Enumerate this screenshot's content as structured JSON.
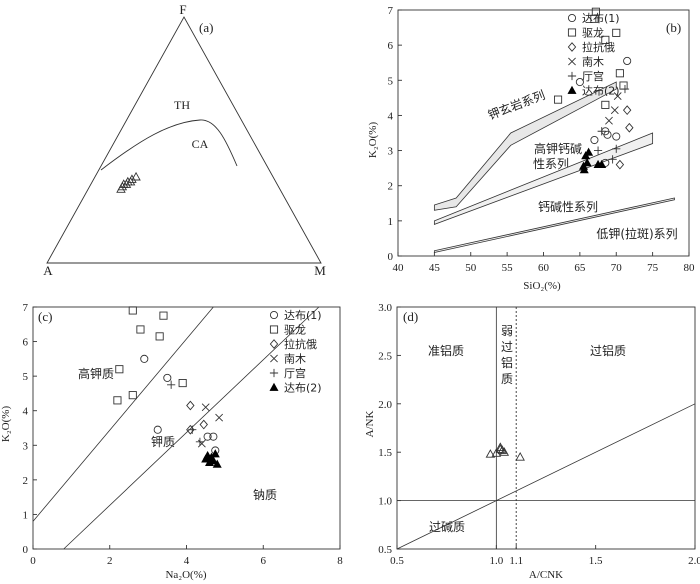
{
  "chart_data": [
    {
      "panel": "(a)",
      "type": "ternary",
      "vertices": {
        "top": "F",
        "left": "A",
        "right": "M"
      },
      "fields": [
        {
          "label": "TH"
        },
        {
          "label": "CA"
        }
      ],
      "samples": [
        {
          "F": 0.3,
          "A": 0.58,
          "M": 0.12
        },
        {
          "F": 0.31,
          "A": 0.57,
          "M": 0.12
        },
        {
          "F": 0.32,
          "A": 0.55,
          "M": 0.13
        },
        {
          "F": 0.32,
          "A": 0.56,
          "M": 0.12
        },
        {
          "F": 0.33,
          "A": 0.54,
          "M": 0.13
        },
        {
          "F": 0.33,
          "A": 0.53,
          "M": 0.14
        },
        {
          "F": 0.34,
          "A": 0.52,
          "M": 0.14
        },
        {
          "F": 0.35,
          "A": 0.5,
          "M": 0.15
        }
      ]
    },
    {
      "panel": "(b)",
      "type": "scatter",
      "xlabel": "SiO₂(%)",
      "ylabel": "K₂O(%)",
      "xlim": [
        40,
        80
      ],
      "ylim": [
        0,
        7
      ],
      "xticks": [
        40,
        45,
        50,
        55,
        60,
        65,
        70,
        75,
        80
      ],
      "yticks": [
        0,
        1,
        2,
        3,
        4,
        5,
        6,
        7
      ],
      "field_labels": [
        "钾玄岩系列",
        "高钾钙碱",
        "性系列",
        "钙碱性系列",
        "低钾(拉斑)系列"
      ],
      "legend": [
        "达布(1)",
        "驱龙",
        "拉抗俄",
        "南木",
        "厅宫",
        "达布(2)"
      ],
      "series": [
        {
          "name": "达布(1)",
          "marker": "circle",
          "points": [
            [
              65.0,
              4.95
            ],
            [
              67.0,
              3.3
            ],
            [
              68.5,
              3.55
            ],
            [
              68.8,
              3.45
            ],
            [
              68.5,
              2.65
            ],
            [
              70.0,
              3.4
            ],
            [
              71.5,
              5.55
            ]
          ]
        },
        {
          "name": "驱龙",
          "marker": "square",
          "points": [
            [
              62.0,
              4.45
            ],
            [
              67.0,
              6.75
            ],
            [
              68.5,
              6.15
            ],
            [
              68.5,
              4.3
            ],
            [
              70.0,
              6.35
            ],
            [
              70.5,
              5.2
            ],
            [
              71.0,
              4.85
            ],
            [
              67.2,
              6.95
            ]
          ]
        },
        {
          "name": "拉抗俄",
          "marker": "diamond",
          "points": [
            [
              71.5,
              4.15
            ],
            [
              71.8,
              3.65
            ],
            [
              70.5,
              2.6
            ]
          ]
        },
        {
          "name": "南木",
          "marker": "x",
          "points": [
            [
              69.0,
              3.85
            ],
            [
              69.8,
              4.15
            ],
            [
              70.2,
              4.55
            ]
          ]
        },
        {
          "name": "厅宫",
          "marker": "plus",
          "points": [
            [
              67.5,
              3.0
            ],
            [
              68.0,
              3.55
            ],
            [
              70.0,
              3.05
            ],
            [
              71.2,
              4.75
            ],
            [
              69.5,
              2.75
            ]
          ]
        },
        {
          "name": "达布(2)",
          "marker": "triangle",
          "points": [
            [
              65.5,
              2.55
            ],
            [
              65.8,
              2.85
            ],
            [
              66.0,
              2.65
            ],
            [
              65.6,
              2.45
            ],
            [
              66.2,
              2.95
            ],
            [
              67.5,
              2.6
            ],
            [
              68.0,
              2.6
            ]
          ]
        }
      ],
      "boundaries": {
        "shoshonite_upper": [
          [
            45.0,
            1.45
          ],
          [
            48.0,
            1.65
          ],
          [
            55.5,
            3.5
          ],
          [
            70.0,
            4.95
          ]
        ],
        "shoshonite_lower": [
          [
            45.0,
            1.3
          ],
          [
            48.0,
            1.4
          ],
          [
            55.5,
            3.15
          ],
          [
            70.0,
            4.75
          ]
        ],
        "highK_upper": [
          [
            45.0,
            1.0
          ],
          [
            75.0,
            3.5
          ]
        ],
        "highK_lower": [
          [
            45.0,
            0.9
          ],
          [
            75.0,
            3.2
          ]
        ],
        "calc_alk_upper": [
          [
            45.0,
            0.15
          ],
          [
            78.0,
            1.65
          ]
        ],
        "calc_alk_lower": [
          [
            45.0,
            0.1
          ],
          [
            78.0,
            1.6
          ]
        ]
      }
    },
    {
      "panel": "(c)",
      "type": "scatter",
      "xlabel": "Na₂O(%)",
      "ylabel": "K₂O(%)",
      "xlim": [
        0,
        8
      ],
      "ylim": [
        0,
        7
      ],
      "xticks": [
        0,
        2,
        4,
        6,
        8
      ],
      "yticks": [
        0,
        1,
        2,
        3,
        4,
        5,
        6,
        7
      ],
      "field_labels": [
        "高钾质",
        "钾质",
        "钠质"
      ],
      "legend": [
        "达布(1)",
        "驱龙",
        "拉抗俄",
        "南木",
        "厅宫",
        "达布(2)"
      ],
      "series": [
        {
          "name": "达布(1)",
          "marker": "circle",
          "points": [
            [
              2.9,
              5.5
            ],
            [
              3.5,
              4.95
            ],
            [
              3.25,
              3.45
            ],
            [
              4.55,
              3.25
            ],
            [
              4.7,
              3.25
            ],
            [
              4.75,
              2.85
            ]
          ]
        },
        {
          "name": "驱龙",
          "marker": "square",
          "points": [
            [
              2.25,
              5.2
            ],
            [
              2.6,
              6.9
            ],
            [
              2.8,
              6.35
            ],
            [
              3.3,
              6.15
            ],
            [
              3.4,
              6.75
            ],
            [
              3.9,
              4.8
            ],
            [
              2.2,
              4.3
            ],
            [
              2.6,
              4.45
            ]
          ]
        },
        {
          "name": "拉抗俄",
          "marker": "diamond",
          "points": [
            [
              4.1,
              4.15
            ],
            [
              4.45,
              3.6
            ],
            [
              4.1,
              3.45
            ]
          ]
        },
        {
          "name": "南木",
          "marker": "x",
          "points": [
            [
              4.5,
              4.1
            ],
            [
              4.85,
              3.8
            ],
            [
              4.4,
              3.05
            ]
          ]
        },
        {
          "name": "厅宫",
          "marker": "plus",
          "points": [
            [
              3.6,
              4.75
            ],
            [
              4.15,
              3.45
            ],
            [
              4.35,
              3.1
            ]
          ]
        },
        {
          "name": "达布(2)",
          "marker": "triangle",
          "points": [
            [
              4.5,
              2.6
            ],
            [
              4.65,
              2.65
            ],
            [
              4.7,
              2.55
            ],
            [
              4.75,
              2.75
            ],
            [
              4.8,
              2.45
            ],
            [
              4.6,
              2.5
            ],
            [
              4.55,
              2.7
            ]
          ]
        }
      ],
      "boundaries": {
        "line1": [
          [
            0,
            0.8
          ],
          [
            4.7,
            7.0
          ]
        ],
        "line2": [
          [
            0.8,
            0
          ],
          [
            7.45,
            7.0
          ]
        ]
      }
    },
    {
      "panel": "(d)",
      "type": "scatter",
      "xlabel": "A/CNK",
      "ylabel": "A/NK",
      "xlim": [
        0.5,
        2.0
      ],
      "ylim": [
        0.5,
        3.0
      ],
      "xticks": [
        "0.5",
        "1.0",
        "1.1",
        "1.5",
        "2.0"
      ],
      "yticks": [
        "0.5",
        "1.0",
        "1.5",
        "2.0",
        "2.5",
        "3.0"
      ],
      "field_labels": [
        "准铝质",
        "弱",
        "过",
        "铝",
        "质",
        "过铝质",
        "过碱质"
      ],
      "reference_lines": {
        "vertical": 1.0,
        "vertical_dotted": 1.1,
        "horizontal": 1.0,
        "diagonal": [
          [
            1.0,
            1.0
          ],
          [
            2.0,
            2.0
          ]
        ]
      },
      "points": [
        [
          0.97,
          1.48
        ],
        [
          1.0,
          1.49
        ],
        [
          1.02,
          1.55
        ],
        [
          1.03,
          1.52
        ],
        [
          1.04,
          1.5
        ],
        [
          1.02,
          1.53
        ],
        [
          1.12,
          1.45
        ]
      ]
    }
  ]
}
